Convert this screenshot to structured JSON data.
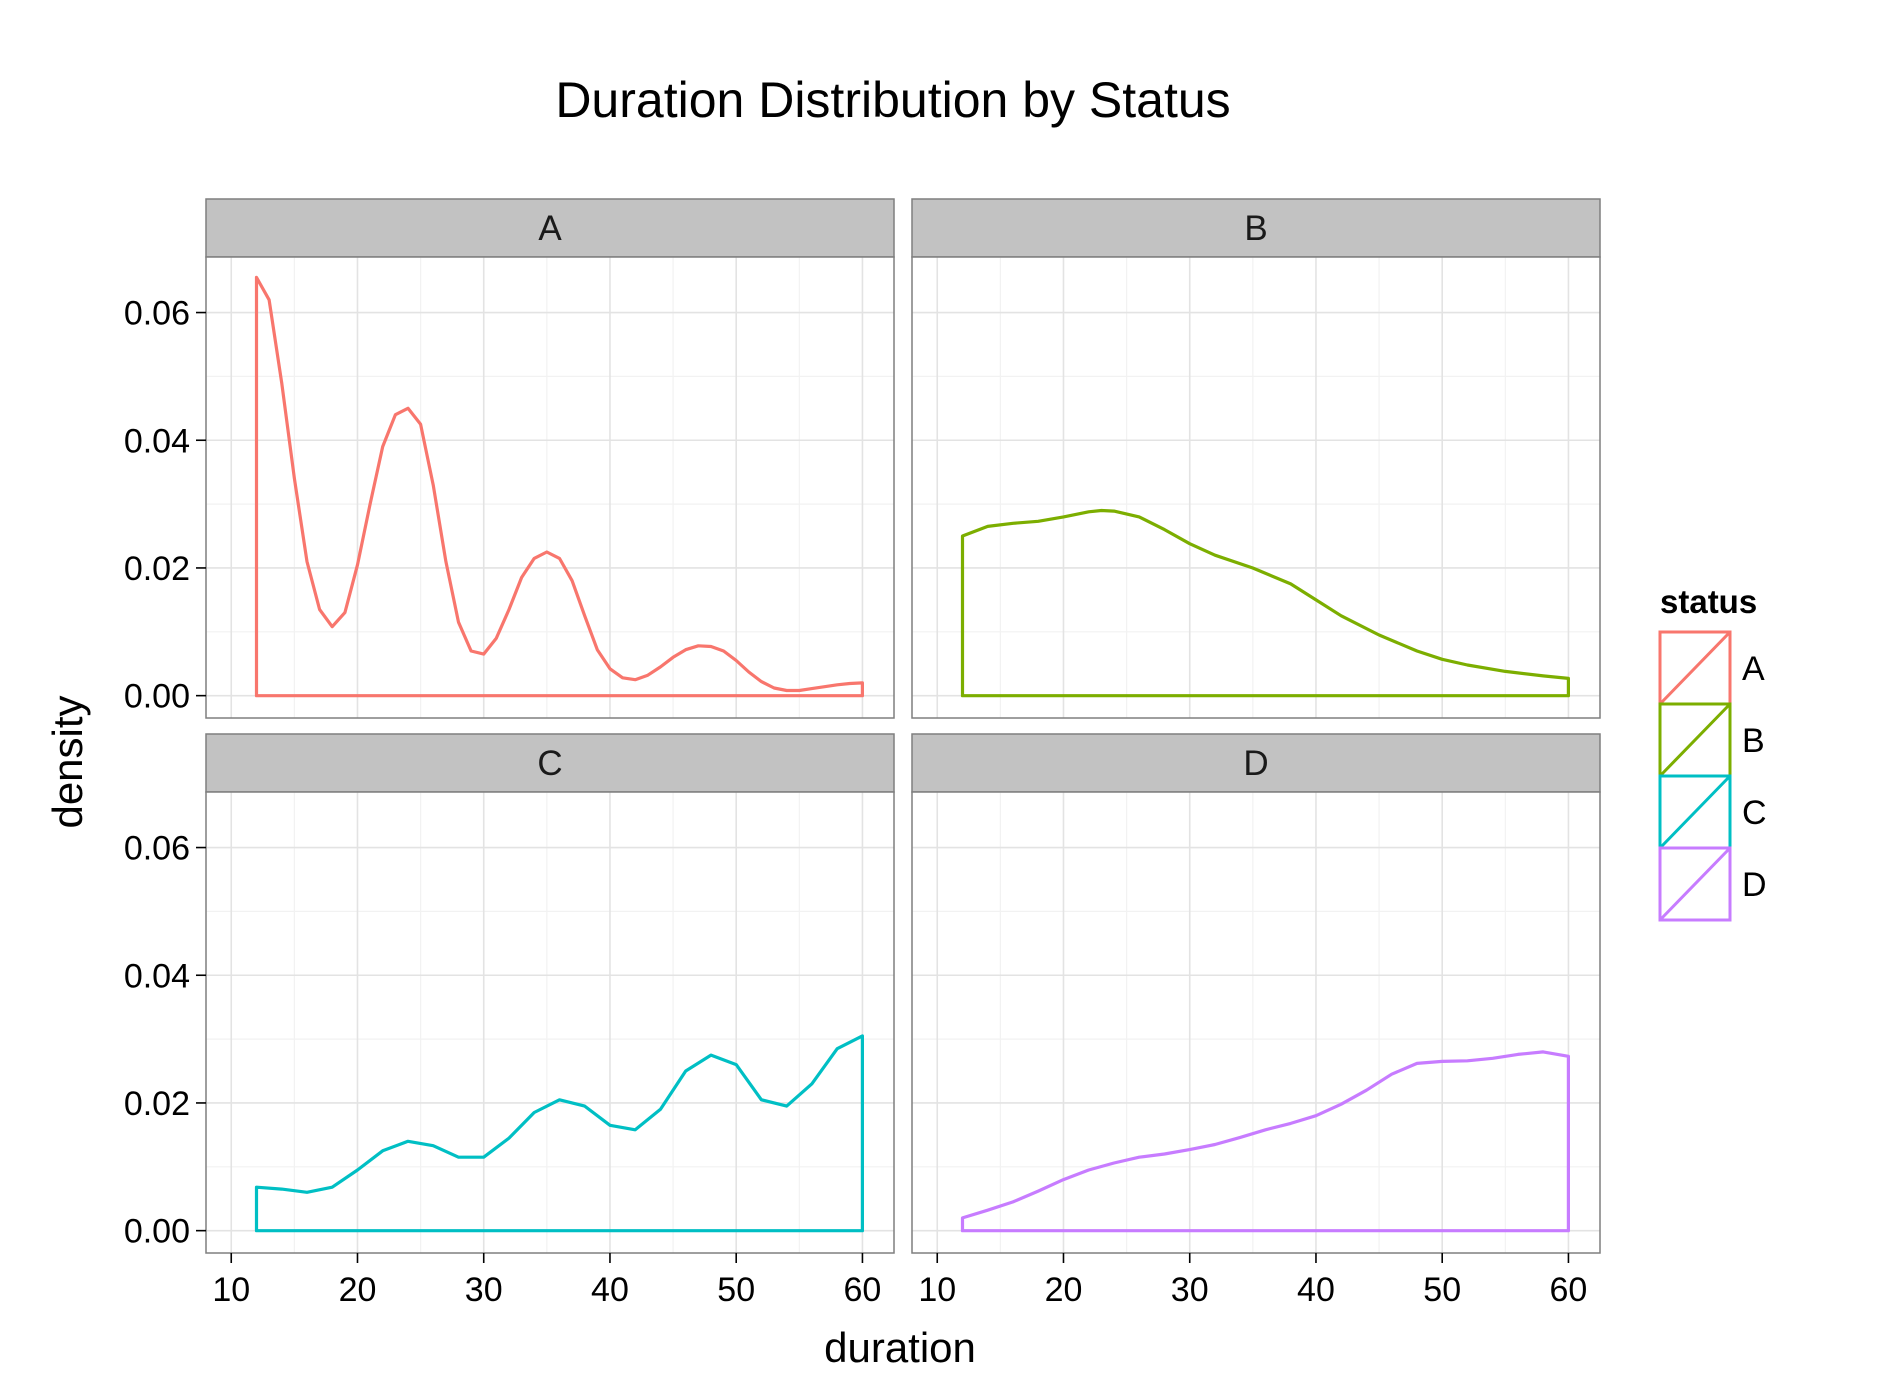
{
  "chart_data": {
    "type": "area",
    "title": "Duration Distribution by Status",
    "xlabel": "duration",
    "ylabel": "density",
    "xlim": [
      8,
      62.5
    ],
    "ylim": [
      -0.0035,
      0.0687
    ],
    "x_ticks": [
      10,
      20,
      30,
      40,
      50,
      60
    ],
    "y_ticks": [
      0,
      0.02,
      0.04,
      0.06
    ],
    "y_tick_labels": [
      "0.00",
      "0.02",
      "0.04",
      "0.06"
    ],
    "x_tick_labels": [
      "10",
      "20",
      "30",
      "40",
      "50",
      "60"
    ],
    "grid": true,
    "legend": {
      "title": "status",
      "position": "right"
    },
    "facets": [
      {
        "name": "A",
        "color": "#F8766D",
        "x": [
          12,
          13,
          14,
          15,
          16,
          17,
          18,
          19,
          20,
          21,
          22,
          23,
          24,
          25,
          26,
          27,
          28,
          29,
          30,
          31,
          32,
          33,
          34,
          35,
          36,
          37,
          38,
          39,
          40,
          41,
          42,
          43,
          44,
          45,
          46,
          47,
          48,
          49,
          50,
          51,
          52,
          53,
          54,
          55,
          56,
          57,
          58,
          59,
          60
        ],
        "y": [
          0.0655,
          0.062,
          0.049,
          0.034,
          0.021,
          0.0135,
          0.0108,
          0.013,
          0.0205,
          0.03,
          0.039,
          0.044,
          0.045,
          0.0425,
          0.033,
          0.021,
          0.0115,
          0.007,
          0.0065,
          0.009,
          0.0135,
          0.0185,
          0.0215,
          0.0225,
          0.0215,
          0.018,
          0.0125,
          0.0072,
          0.0042,
          0.0028,
          0.0025,
          0.0032,
          0.0045,
          0.006,
          0.0072,
          0.0078,
          0.0077,
          0.007,
          0.0055,
          0.0037,
          0.0022,
          0.0012,
          0.0008,
          0.0008,
          0.0011,
          0.0014,
          0.0017,
          0.0019,
          0.002
        ]
      },
      {
        "name": "B",
        "color": "#7CAE00",
        "x": [
          12,
          14,
          16,
          18,
          20,
          22,
          23,
          24,
          26,
          28,
          30,
          32,
          35,
          38,
          40,
          42,
          45,
          48,
          50,
          52,
          55,
          58,
          60
        ],
        "y": [
          0.025,
          0.0265,
          0.027,
          0.0273,
          0.028,
          0.0288,
          0.029,
          0.0289,
          0.028,
          0.026,
          0.0238,
          0.022,
          0.02,
          0.0175,
          0.015,
          0.0125,
          0.0095,
          0.007,
          0.0057,
          0.0048,
          0.0038,
          0.0031,
          0.0027
        ]
      },
      {
        "name": "C",
        "color": "#00BFC4",
        "x": [
          12,
          14,
          16,
          18,
          20,
          22,
          24,
          26,
          28,
          30,
          32,
          34,
          36,
          38,
          40,
          42,
          44,
          46,
          48,
          50,
          52,
          54,
          56,
          58,
          60
        ],
        "y": [
          0.0068,
          0.0065,
          0.006,
          0.0068,
          0.0095,
          0.0125,
          0.014,
          0.0133,
          0.0115,
          0.0115,
          0.0145,
          0.0185,
          0.0205,
          0.0195,
          0.0165,
          0.0158,
          0.019,
          0.025,
          0.0275,
          0.026,
          0.0205,
          0.0195,
          0.023,
          0.0285,
          0.0305
        ]
      },
      {
        "name": "D",
        "color": "#C77CFF",
        "x": [
          12,
          14,
          16,
          18,
          20,
          22,
          24,
          26,
          28,
          30,
          32,
          34,
          36,
          38,
          40,
          42,
          44,
          46,
          48,
          50,
          52,
          54,
          56,
          58,
          60
        ],
        "y": [
          0.002,
          0.0032,
          0.0045,
          0.0062,
          0.008,
          0.0095,
          0.0106,
          0.0115,
          0.012,
          0.0127,
          0.0135,
          0.0146,
          0.0158,
          0.0168,
          0.018,
          0.0198,
          0.022,
          0.0245,
          0.0262,
          0.0265,
          0.0266,
          0.027,
          0.0276,
          0.028,
          0.0273
        ]
      }
    ]
  }
}
